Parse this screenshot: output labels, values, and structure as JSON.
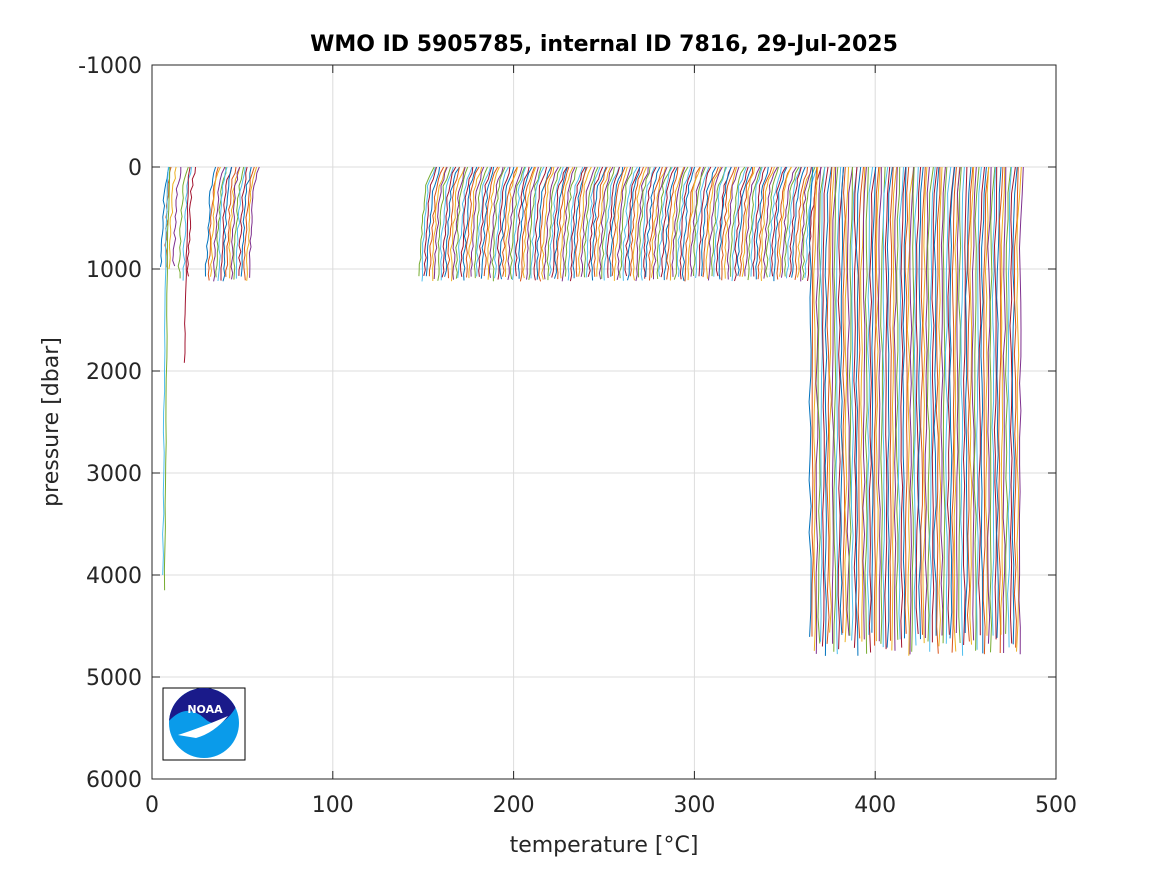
{
  "chart_data": {
    "type": "line",
    "title": "WMO ID 5905785, internal ID 7816, 29-Jul-2025",
    "xlabel": "temperature [°C]",
    "ylabel": "pressure [dbar]",
    "xlim": [
      0,
      500
    ],
    "ylim": [
      -1000,
      6000
    ],
    "y_reversed": true,
    "grid": true,
    "x_ticks": [
      0,
      100,
      200,
      300,
      400,
      500
    ],
    "x_tick_labels": [
      "0",
      "100",
      "200",
      "300",
      "400",
      "500"
    ],
    "y_ticks": [
      -1000,
      0,
      1000,
      2000,
      3000,
      4000,
      5000,
      6000
    ],
    "y_tick_labels": [
      "-1000",
      "0",
      "1000",
      "2000",
      "3000",
      "4000",
      "5000",
      "6000"
    ],
    "series_colors": [
      "#0072BD",
      "#D95319",
      "#EDB120",
      "#7E2F8E",
      "#77AC30",
      "#4DBEEE",
      "#A2142F"
    ],
    "profile_groups": [
      {
        "x_start": 5,
        "x_end": 12,
        "count": 4,
        "max_pressure": 1000,
        "surface_temp_offset": 4
      },
      {
        "x_start": 15,
        "x_end": 20,
        "count": 3,
        "max_pressure": 1100,
        "surface_temp_offset": 4
      },
      {
        "x_start": 30,
        "x_end": 54,
        "count": 18,
        "max_pressure": 1100,
        "surface_temp_offset": 5
      },
      {
        "x_start": 148,
        "x_end": 363,
        "count": 150,
        "max_pressure": 1100,
        "surface_temp_offset": 7
      },
      {
        "x_start": 364,
        "x_end": 480,
        "count": 95,
        "max_pressure": 4700,
        "surface_temp_offset": 2
      }
    ],
    "deep_profiles": [
      {
        "x_surface": 10,
        "x_deep": 7,
        "max_pressure": 4150
      },
      {
        "x_surface": 9,
        "x_deep": 6,
        "max_pressure": 4000
      },
      {
        "x_surface": 21,
        "x_deep": 18,
        "max_pressure": 1920
      }
    ],
    "logo": "noaa-logo"
  }
}
